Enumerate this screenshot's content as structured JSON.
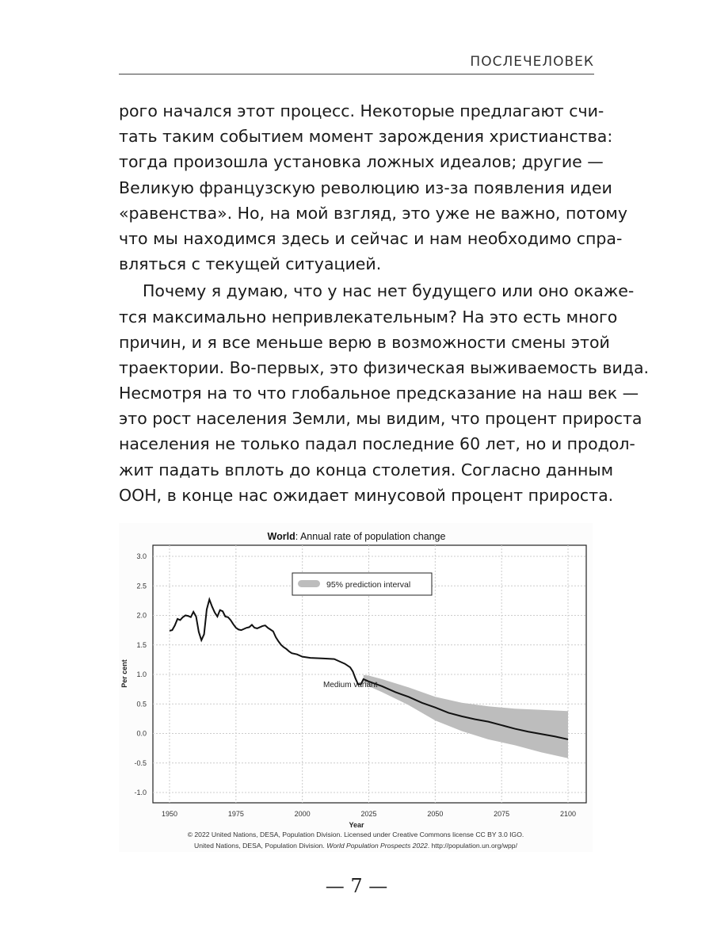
{
  "header": {
    "running_title": "ПОСЛЕЧЕЛОВЕК"
  },
  "paragraphs": [
    {
      "lines": [
        "рого начался этот процесс. Некоторые предлагают счи-",
        "тать таким событием момент зарождения христианства:",
        "тогда произошла установка ложных идеалов; другие —",
        "Великую французскую революцию из-за появления идеи",
        "«равенства». Но, на мой взгляд, это уже не важно, потому",
        "что мы находимся здесь и сейчас и нам необходимо спра-",
        "вляться с текущей ситуацией."
      ]
    },
    {
      "lines": [
        "Почему я думаю, что у нас нет будущего или оно окаже-",
        "тся максимально непривлекательным? На это есть много",
        "причин, и я все меньше верю в возможности смены этой",
        "траектории. Во-первых, это физическая выживаемость вида.",
        "Несмотря на то что глобальное предсказание на наш век —",
        "это рост населения Земли, мы видим, что процент прироста",
        "населения не только падал последние 60 лет, но и продол-",
        "жит падать вплоть до конца столетия. Согласно данным",
        "ООН, в конце нас ожидает минусовой процент прироста."
      ]
    }
  ],
  "chart_data": {
    "type": "line",
    "title_bold": "World",
    "title_rest": ": Annual rate of population change",
    "xlabel": "Year",
    "ylabel": "Per cent",
    "xlim": [
      1946,
      2107
    ],
    "ylim": [
      -1.2,
      3.2
    ],
    "xticks": [
      1950,
      1975,
      2000,
      2025,
      2050,
      2075,
      2100
    ],
    "yticks": [
      "3.0",
      "2.5",
      "2.0",
      "1.5",
      "1.0",
      "0.5",
      "0.0",
      "-0.5",
      "-1.0"
    ],
    "grid": true,
    "legend": {
      "label": "95% prediction interval",
      "position": "top-center"
    },
    "annotation": "Medium variant",
    "colors": {
      "line": "#111111",
      "interval": "#bdbdbd"
    },
    "series": [
      {
        "name": "Medium variant",
        "x": [
          1950,
          1951,
          1952,
          1953,
          1954,
          1955,
          1956,
          1957,
          1958,
          1959,
          1960,
          1961,
          1962,
          1963,
          1964,
          1965,
          1966,
          1967,
          1968,
          1969,
          1970,
          1971,
          1972,
          1973,
          1974,
          1975,
          1976,
          1977,
          1978,
          1979,
          1980,
          1981,
          1982,
          1983,
          1984,
          1985,
          1986,
          1987,
          1988,
          1989,
          1990,
          1991,
          1992,
          1993,
          1994,
          1995,
          1996,
          1998,
          2000,
          2003,
          2008,
          2012,
          2014,
          2016,
          2018,
          2019,
          2020,
          2021,
          2022,
          2023,
          2025,
          2030,
          2035,
          2040,
          2045,
          2050,
          2055,
          2060,
          2065,
          2070,
          2075,
          2080,
          2085,
          2090,
          2095,
          2100
        ],
        "y": [
          1.74,
          1.75,
          1.83,
          1.94,
          1.92,
          1.97,
          2.0,
          1.99,
          1.97,
          2.06,
          1.98,
          1.72,
          1.58,
          1.68,
          2.1,
          2.27,
          2.15,
          2.05,
          1.98,
          2.09,
          2.07,
          1.98,
          1.97,
          1.92,
          1.85,
          1.79,
          1.76,
          1.75,
          1.77,
          1.79,
          1.8,
          1.84,
          1.79,
          1.78,
          1.8,
          1.82,
          1.83,
          1.79,
          1.76,
          1.73,
          1.63,
          1.56,
          1.5,
          1.46,
          1.43,
          1.39,
          1.36,
          1.34,
          1.3,
          1.28,
          1.27,
          1.26,
          1.22,
          1.18,
          1.12,
          1.05,
          0.93,
          0.83,
          0.83,
          0.92,
          0.88,
          0.8,
          0.7,
          0.62,
          0.52,
          0.44,
          0.35,
          0.29,
          0.24,
          0.2,
          0.14,
          0.08,
          0.03,
          -0.01,
          -0.05,
          -0.1
        ]
      }
    ],
    "interval": {
      "x": [
        2023,
        2025,
        2030,
        2040,
        2050,
        2060,
        2070,
        2080,
        2090,
        2100
      ],
      "upper": [
        0.99,
        0.98,
        0.92,
        0.78,
        0.62,
        0.52,
        0.46,
        0.42,
        0.4,
        0.38
      ],
      "lower": [
        0.86,
        0.8,
        0.7,
        0.48,
        0.22,
        0.04,
        -0.1,
        -0.2,
        -0.32,
        -0.42
      ]
    },
    "credit_line1": "© 2022 United Nations, DESA, Population Division. Licensed under Creative Commons license CC BY 3.0 IGO.",
    "credit_line2_prefix": "United Nations, DESA, Population Division. ",
    "credit_line2_italic": "World Population Prospects 2022",
    "credit_line2_suffix": ". http://population.un.org/wpp/"
  },
  "footer": {
    "page_number": "— 7 —"
  }
}
